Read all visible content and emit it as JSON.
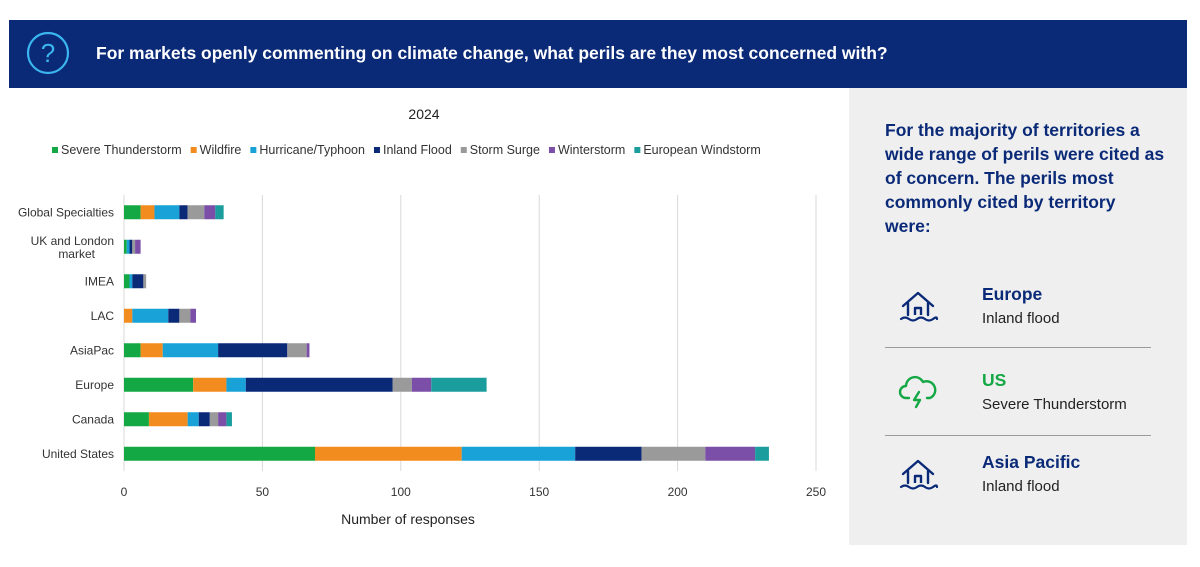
{
  "header": {
    "title": "For markets openly commenting on climate change, what perils are they most concerned with?",
    "icon": "question-circle-icon"
  },
  "chart_data": {
    "type": "bar",
    "orientation": "horizontal",
    "stacked": true,
    "title": "2024",
    "xlabel": "Number of responses",
    "ylabel": "",
    "xlim": [
      0,
      250
    ],
    "xticks": [
      0,
      50,
      100,
      150,
      200,
      250
    ],
    "legend_position": "top",
    "grid": true,
    "categories": [
      "Global Specialties",
      "UK and London market",
      "IMEA",
      "LAC",
      "AsiaPac",
      "Europe",
      "Canada",
      "United States"
    ],
    "series": [
      {
        "name": "Severe Thunderstorm",
        "color": "#13a843",
        "values": [
          6,
          1,
          2,
          0,
          6,
          25,
          9,
          69
        ]
      },
      {
        "name": "Wildfire",
        "color": "#f28c1e",
        "values": [
          5,
          0,
          0,
          3,
          8,
          12,
          14,
          53
        ]
      },
      {
        "name": "Hurricane/Typhoon",
        "color": "#18a2d8",
        "values": [
          9,
          1,
          1,
          13,
          20,
          7,
          4,
          41
        ]
      },
      {
        "name": "Inland Flood",
        "color": "#0a2a78",
        "values": [
          3,
          1,
          4,
          4,
          25,
          53,
          4,
          24
        ]
      },
      {
        "name": "Storm Surge",
        "color": "#9a9a9a",
        "values": [
          6,
          1,
          1,
          4,
          7,
          7,
          3,
          23
        ]
      },
      {
        "name": "Winterstorm",
        "color": "#7b4fa8",
        "values": [
          4,
          2,
          0,
          2,
          1,
          7,
          3,
          18
        ]
      },
      {
        "name": "European Windstorm",
        "color": "#1c9d9d",
        "values": [
          3,
          0,
          0,
          0,
          0,
          20,
          2,
          5
        ]
      }
    ]
  },
  "sidebar": {
    "intro": "For the majority of territories a wide range of perils were cited as of concern. The perils most commonly cited by territory were:",
    "items": [
      {
        "region": "Europe",
        "peril": "Inland  flood",
        "icon": "house-flood-icon",
        "color": "#0a2a78"
      },
      {
        "region": "US",
        "peril": "Severe Thunderstorm",
        "icon": "cloud-lightning-icon",
        "color": "#13a843"
      },
      {
        "region": "Asia Pacific",
        "peril": "Inland  flood",
        "icon": "house-flood-icon",
        "color": "#0a2a78"
      }
    ]
  }
}
